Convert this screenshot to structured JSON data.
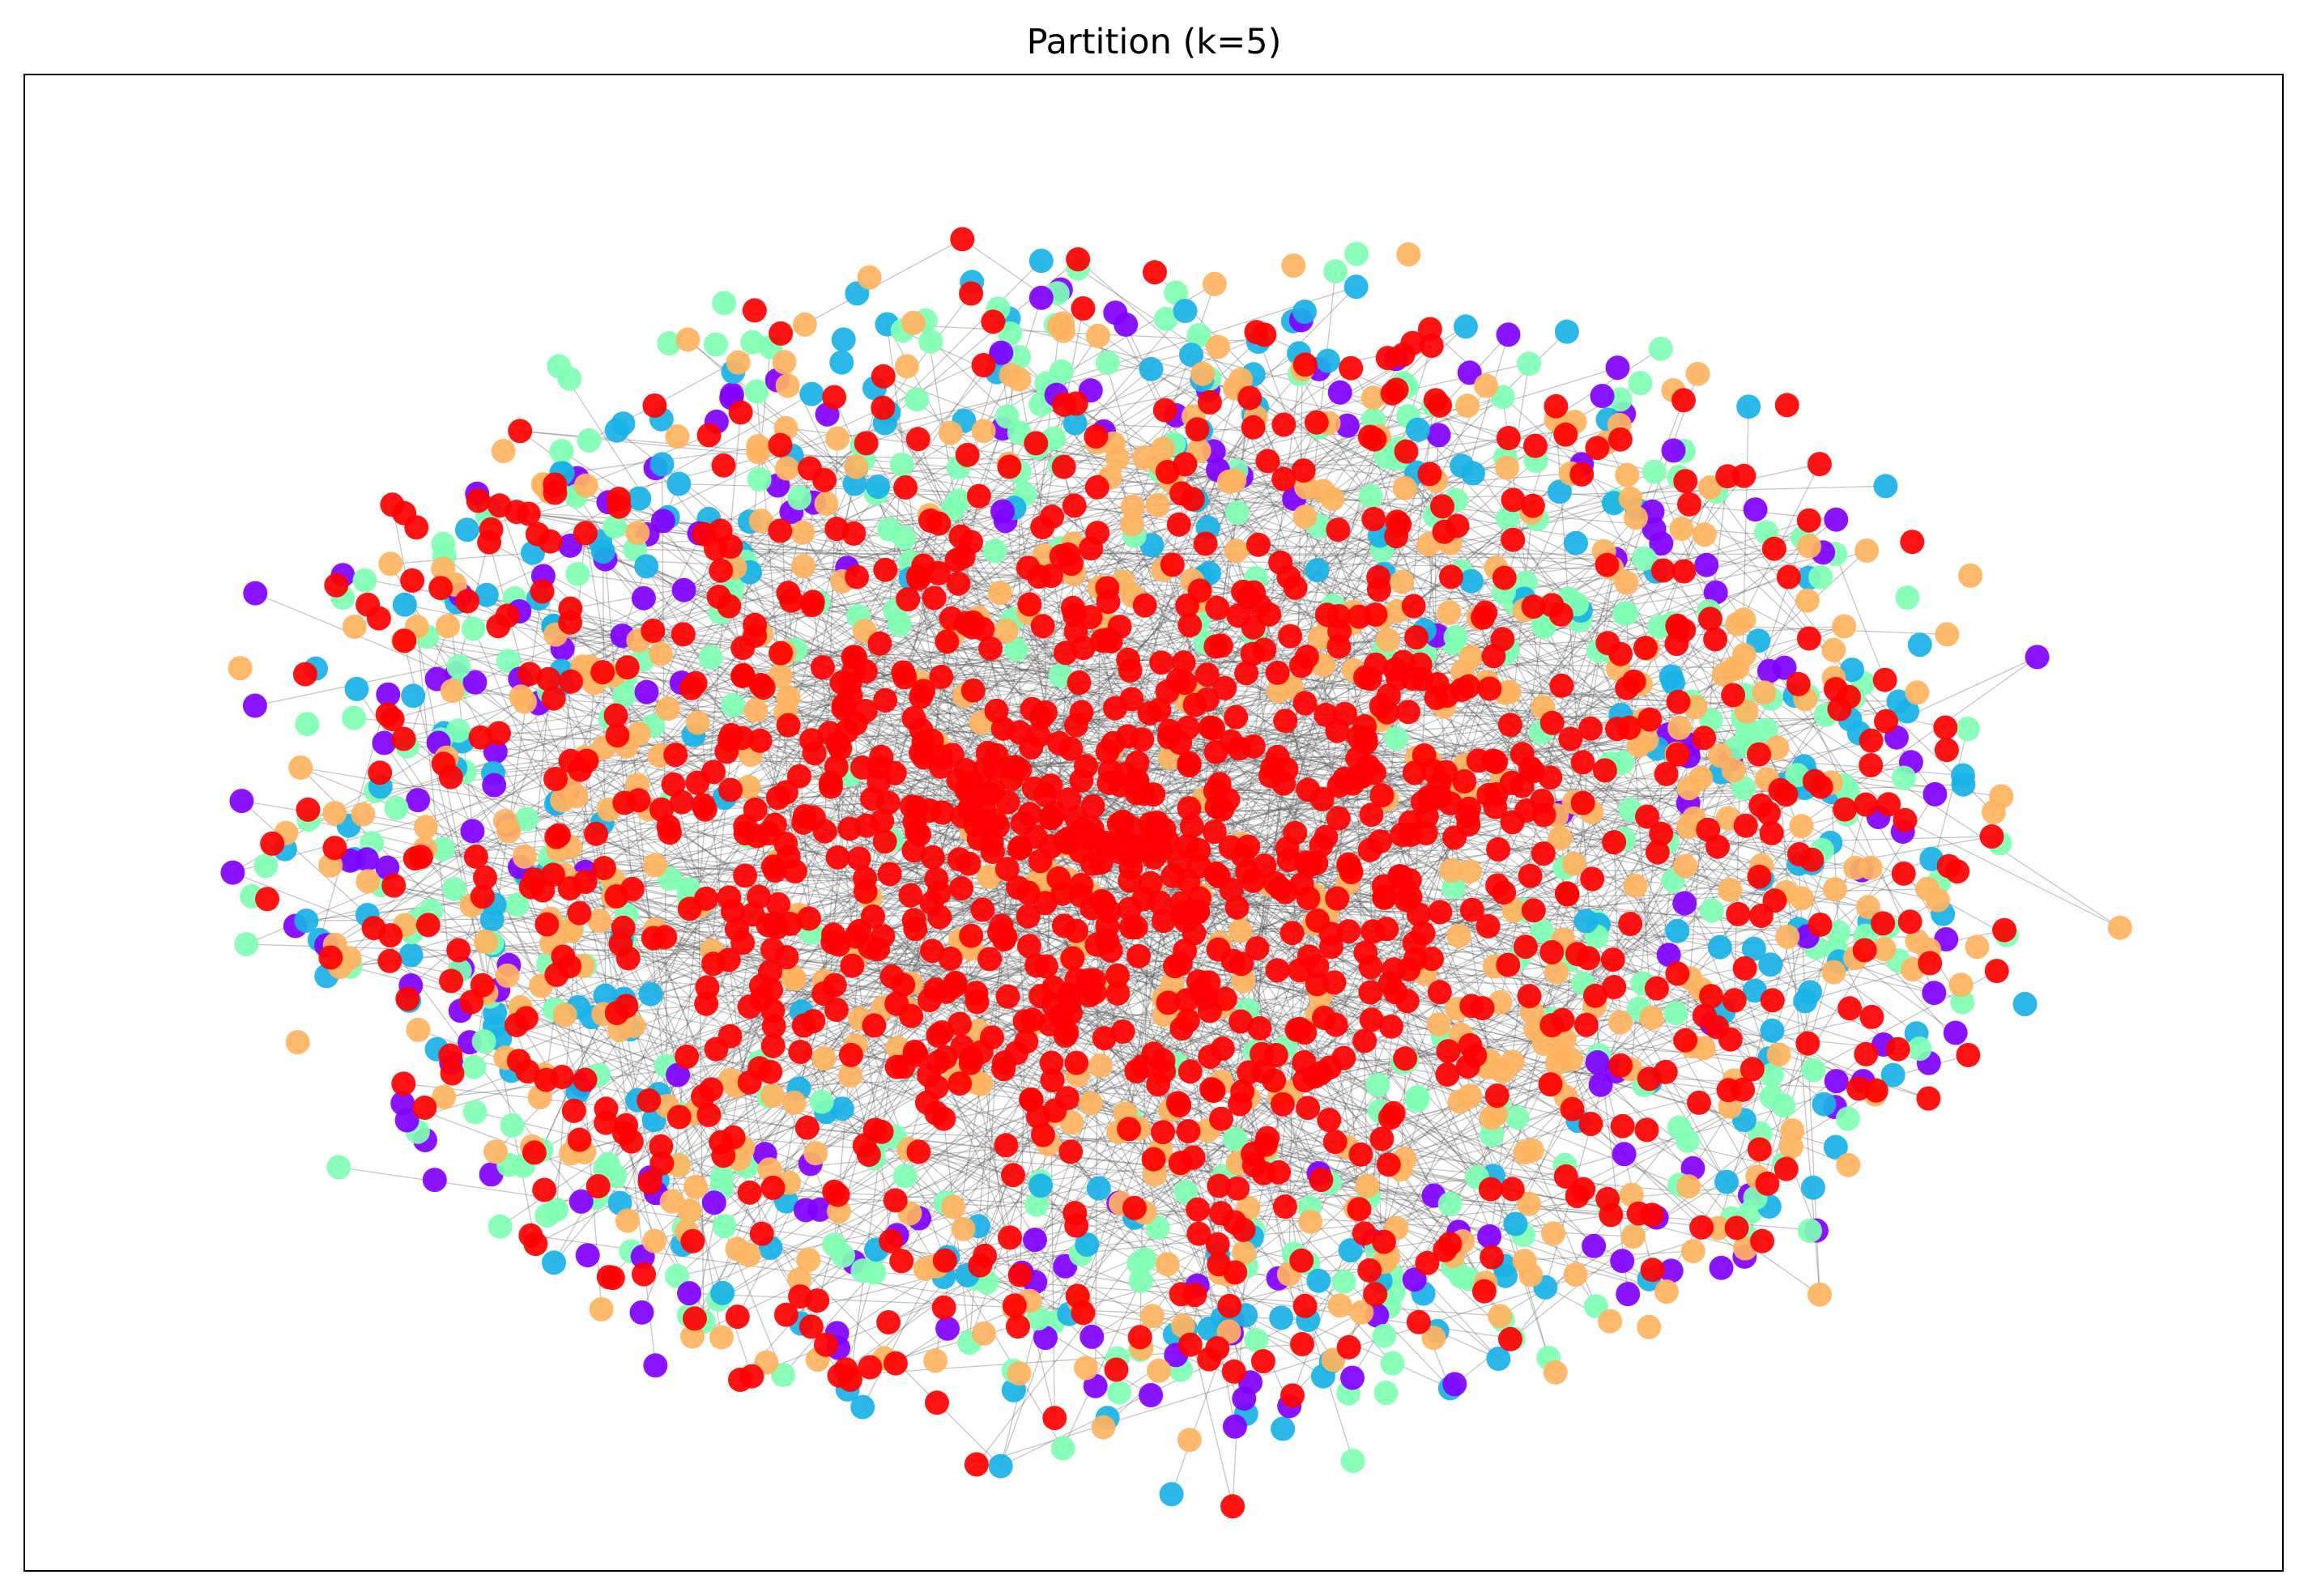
{
  "chart_data": {
    "type": "network",
    "title": "Partition (k=5)",
    "partitions": 5,
    "axes_visible": false,
    "ticks_visible": false,
    "colors": {
      "community_0": "#8000ff",
      "community_1": "#19b2e6",
      "community_2": "#80ffb4",
      "community_3": "#ffb360",
      "community_4": "#ff0000",
      "edge": "#555555"
    }
  }
}
